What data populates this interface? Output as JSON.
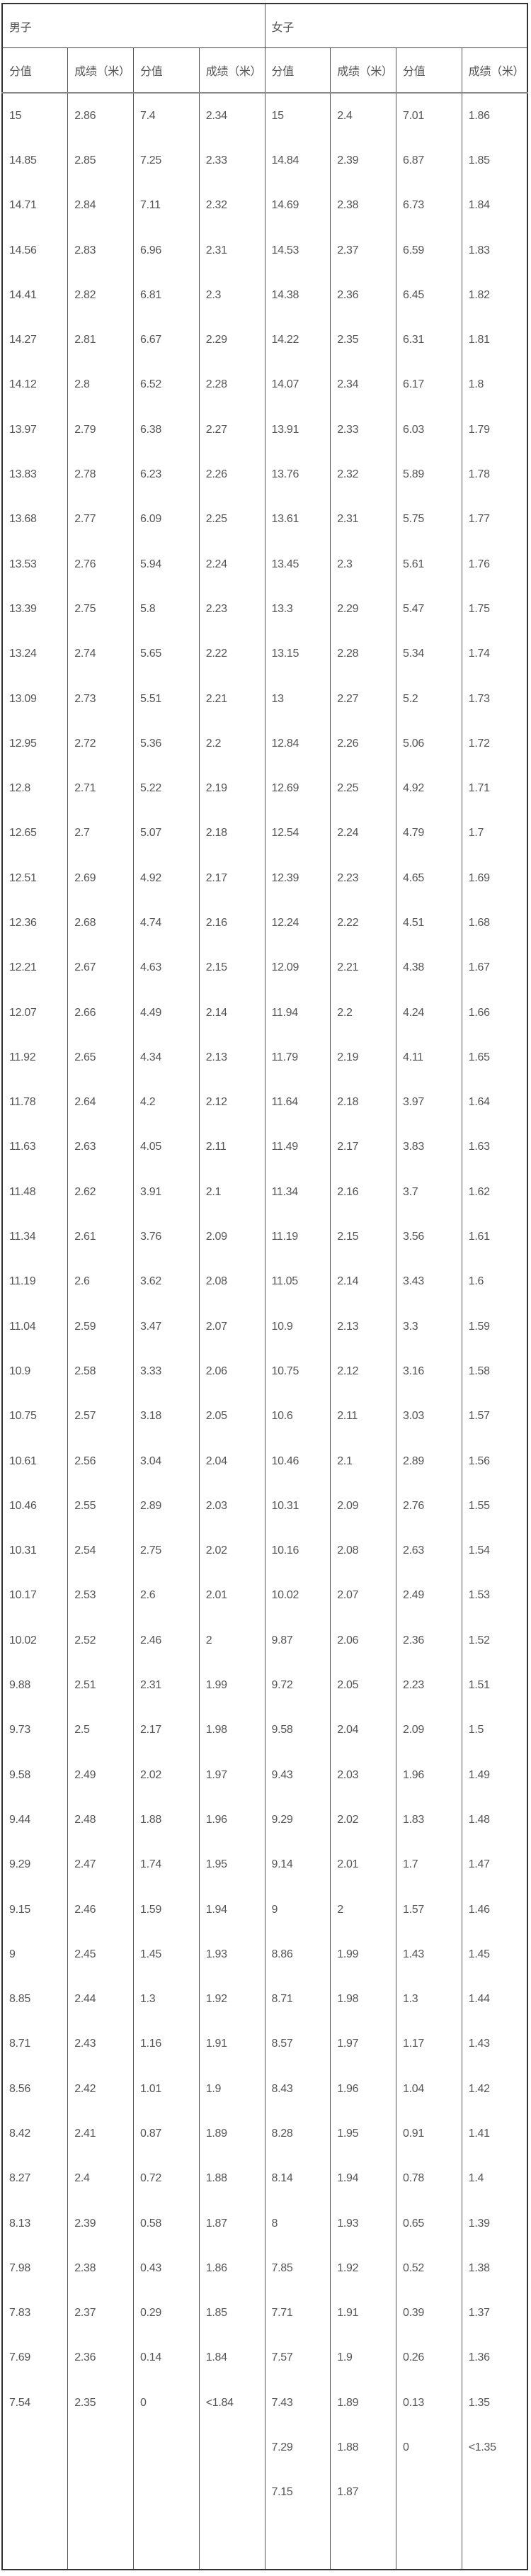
{
  "groups": {
    "male": "男子",
    "female": "女子"
  },
  "sub_headers": [
    "分值",
    "成绩（米）",
    "分值",
    "成绩（米）",
    "分值",
    "成绩（米）",
    "分值",
    "成绩（米）"
  ],
  "columns": {
    "male_score_1": [
      "15",
      "14.85",
      "14.71",
      "14.56",
      "14.41",
      "14.27",
      "14.12",
      "13.97",
      "13.83",
      "13.68",
      "13.53",
      "13.39",
      "13.24",
      "13.09",
      "12.95",
      "12.8",
      "12.65",
      "12.51",
      "12.36",
      "12.21",
      "12.07",
      "11.92",
      "11.78",
      "11.63",
      "11.48",
      "11.34",
      "11.19",
      "11.04",
      "10.9",
      "10.75",
      "10.61",
      "10.46",
      "10.31",
      "10.17",
      "10.02",
      "9.88",
      "9.73",
      "9.58",
      "9.44",
      "9.29",
      "9.15",
      "9",
      "8.85",
      "8.71",
      "8.56",
      "8.42",
      "8.27",
      "8.13",
      "7.98",
      "7.83",
      "7.69",
      "7.54"
    ],
    "male_result_1": [
      "2.86",
      "2.85",
      "2.84",
      "2.83",
      "2.82",
      "2.81",
      "2.8",
      "2.79",
      "2.78",
      "2.77",
      "2.76",
      "2.75",
      "2.74",
      "2.73",
      "2.72",
      "2.71",
      "2.7",
      "2.69",
      "2.68",
      "2.67",
      "2.66",
      "2.65",
      "2.64",
      "2.63",
      "2.62",
      "2.61",
      "2.6",
      "2.59",
      "2.58",
      "2.57",
      "2.56",
      "2.55",
      "2.54",
      "2.53",
      "2.52",
      "2.51",
      "2.5",
      "2.49",
      "2.48",
      "2.47",
      "2.46",
      "2.45",
      "2.44",
      "2.43",
      "2.42",
      "2.41",
      "2.4",
      "2.39",
      "2.38",
      "2.37",
      "2.36",
      "2.35"
    ],
    "male_score_2": [
      "7.4",
      "7.25",
      "7.11",
      "6.96",
      "6.81",
      "6.67",
      "6.52",
      "6.38",
      "6.23",
      "6.09",
      "5.94",
      "5.8",
      "5.65",
      "5.51",
      "5.36",
      "5.22",
      "5.07",
      "4.92",
      "4.74",
      "4.63",
      "4.49",
      "4.34",
      "4.2",
      "4.05",
      "3.91",
      "3.76",
      "3.62",
      "3.47",
      "3.33",
      "3.18",
      "3.04",
      "2.89",
      "2.75",
      "2.6",
      "2.46",
      "2.31",
      "2.17",
      "2.02",
      "1.88",
      "1.74",
      "1.59",
      "1.45",
      "1.3",
      "1.16",
      "1.01",
      "0.87",
      "0.72",
      "0.58",
      "0.43",
      "0.29",
      "0.14",
      "0"
    ],
    "male_result_2": [
      "2.34",
      "2.33",
      "2.32",
      "2.31",
      "2.3",
      "2.29",
      "2.28",
      "2.27",
      "2.26",
      "2.25",
      "2.24",
      "2.23",
      "2.22",
      "2.21",
      "2.2",
      "2.19",
      "2.18",
      "2.17",
      "2.16",
      "2.15",
      "2.14",
      "2.13",
      "2.12",
      "2.11",
      "2.1",
      "2.09",
      "2.08",
      "2.07",
      "2.06",
      "2.05",
      "2.04",
      "2.03",
      "2.02",
      "2.01",
      "2",
      "1.99",
      "1.98",
      "1.97",
      "1.96",
      "1.95",
      "1.94",
      "1.93",
      "1.92",
      "1.91",
      "1.9",
      "1.89",
      "1.88",
      "1.87",
      "1.86",
      "1.85",
      "1.84",
      "<1.84"
    ],
    "female_score_1": [
      "15",
      "14.84",
      "14.69",
      "14.53",
      "14.38",
      "14.22",
      "14.07",
      "13.91",
      "13.76",
      "13.61",
      "13.45",
      "13.3",
      "13.15",
      "13",
      "12.84",
      "12.69",
      "12.54",
      "12.39",
      "12.24",
      "12.09",
      "11.94",
      "11.79",
      "11.64",
      "11.49",
      "11.34",
      "11.19",
      "11.05",
      "10.9",
      "10.75",
      "10.6",
      "10.46",
      "10.31",
      "10.16",
      "10.02",
      "9.87",
      "9.72",
      "9.58",
      "9.43",
      "9.29",
      "9.14",
      "9",
      "8.86",
      "8.71",
      "8.57",
      "8.43",
      "8.28",
      "8.14",
      "8",
      "7.85",
      "7.71",
      "7.57",
      "7.43",
      "7.29",
      "7.15"
    ],
    "female_result_1": [
      "2.4",
      "2.39",
      "2.38",
      "2.37",
      "2.36",
      "2.35",
      "2.34",
      "2.33",
      "2.32",
      "2.31",
      "2.3",
      "2.29",
      "2.28",
      "2.27",
      "2.26",
      "2.25",
      "2.24",
      "2.23",
      "2.22",
      "2.21",
      "2.2",
      "2.19",
      "2.18",
      "2.17",
      "2.16",
      "2.15",
      "2.14",
      "2.13",
      "2.12",
      "2.11",
      "2.1",
      "2.09",
      "2.08",
      "2.07",
      "2.06",
      "2.05",
      "2.04",
      "2.03",
      "2.02",
      "2.01",
      "2",
      "1.99",
      "1.98",
      "1.97",
      "1.96",
      "1.95",
      "1.94",
      "1.93",
      "1.92",
      "1.91",
      "1.9",
      "1.89",
      "1.88",
      "1.87"
    ],
    "female_score_2": [
      "7.01",
      "6.87",
      "6.73",
      "6.59",
      "6.45",
      "6.31",
      "6.17",
      "6.03",
      "5.89",
      "5.75",
      "5.61",
      "5.47",
      "5.34",
      "5.2",
      "5.06",
      "4.92",
      "4.79",
      "4.65",
      "4.51",
      "4.38",
      "4.24",
      "4.11",
      "3.97",
      "3.83",
      "3.7",
      "3.56",
      "3.43",
      "3.3",
      "3.16",
      "3.03",
      "2.89",
      "2.76",
      "2.63",
      "2.49",
      "2.36",
      "2.23",
      "2.09",
      "1.96",
      "1.83",
      "1.7",
      "1.57",
      "1.43",
      "1.3",
      "1.17",
      "1.04",
      "0.91",
      "0.78",
      "0.65",
      "0.52",
      "0.39",
      "0.26",
      "0.13",
      "0"
    ],
    "female_result_2": [
      "1.86",
      "1.85",
      "1.84",
      "1.83",
      "1.82",
      "1.81",
      "1.8",
      "1.79",
      "1.78",
      "1.77",
      "1.76",
      "1.75",
      "1.74",
      "1.73",
      "1.72",
      "1.71",
      "1.7",
      "1.69",
      "1.68",
      "1.67",
      "1.66",
      "1.65",
      "1.64",
      "1.63",
      "1.62",
      "1.61",
      "1.6",
      "1.59",
      "1.58",
      "1.57",
      "1.56",
      "1.55",
      "1.54",
      "1.53",
      "1.52",
      "1.51",
      "1.5",
      "1.49",
      "1.48",
      "1.47",
      "1.46",
      "1.45",
      "1.44",
      "1.43",
      "1.42",
      "1.41",
      "1.4",
      "1.39",
      "1.38",
      "1.37",
      "1.36",
      "1.35",
      "<1.35"
    ]
  }
}
